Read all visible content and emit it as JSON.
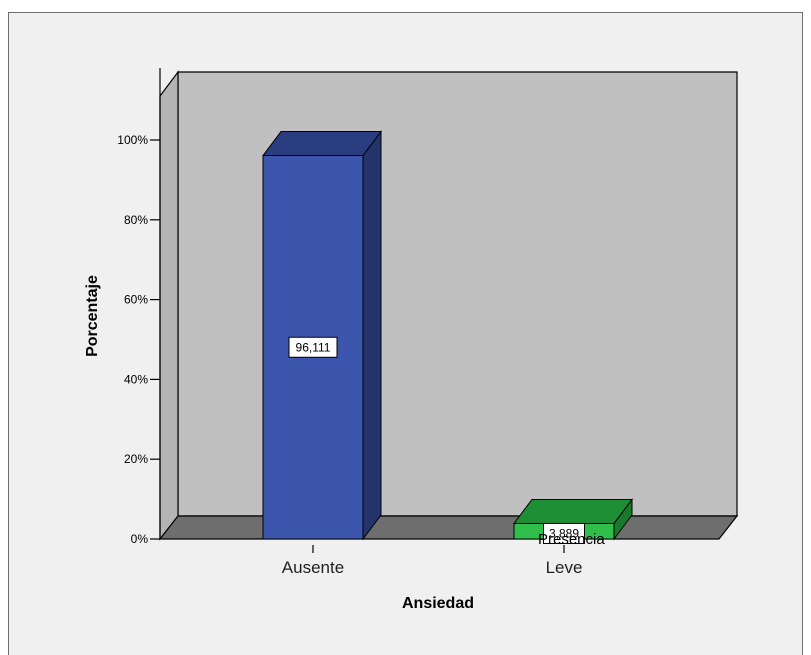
{
  "colors": {
    "frame_bg": "#f0f0f0",
    "wall": "#c0c0c0",
    "floor": "#6e6e6e",
    "side_wall": "#b4b4b4",
    "bar_front": [
      "#3c56ad",
      "#2fbf4a"
    ],
    "bar_side": [
      "#24346b",
      "#1a7a2c"
    ],
    "bar_top": [
      "#2a3d80",
      "#1f8f35"
    ]
  },
  "chart_data": {
    "type": "bar",
    "style": "3d",
    "categories": [
      "Ausente",
      "Leve"
    ],
    "values": [
      96.111,
      3.889
    ],
    "data_labels": [
      "96,111",
      "3,889"
    ],
    "xlabel": "Ansiedad",
    "ylabel": "Porcentaje",
    "ylim": [
      0,
      100
    ],
    "yticks": [
      0,
      20,
      40,
      60,
      80,
      100
    ],
    "ytick_labels": [
      "0%",
      "20%",
      "40%",
      "60%",
      "80%",
      "100%"
    ],
    "annotation": "Presencia",
    "grid": false
  }
}
